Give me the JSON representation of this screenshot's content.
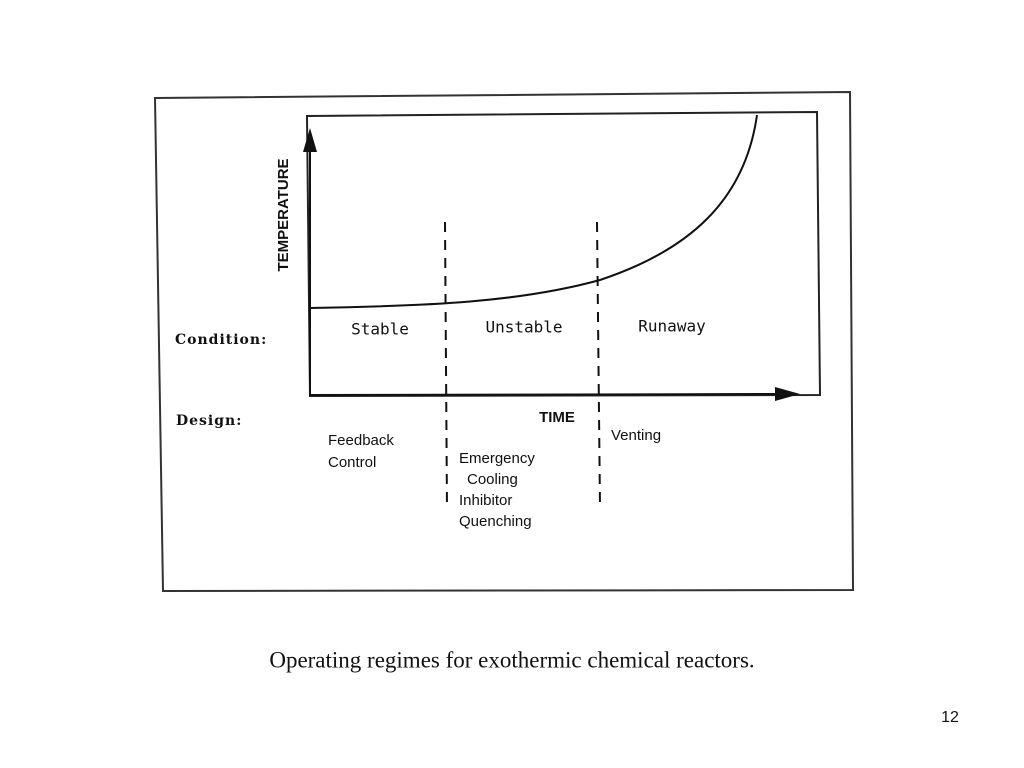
{
  "diagram": {
    "y_axis_label": "TEMPERATURE",
    "x_axis_label": "TIME",
    "condition_label": "Condition:",
    "design_label": "Design:",
    "regimes": [
      {
        "condition": "Stable",
        "design": [
          "Feedback",
          "Control"
        ]
      },
      {
        "condition": "Unstable",
        "design": [
          "Emergency",
          "Cooling",
          "Inhibitor",
          "Quenching"
        ]
      },
      {
        "condition": "Runaway",
        "design": [
          "Venting"
        ]
      }
    ]
  },
  "caption": "Operating regimes for exothermic chemical reactors.",
  "page_number": "12"
}
